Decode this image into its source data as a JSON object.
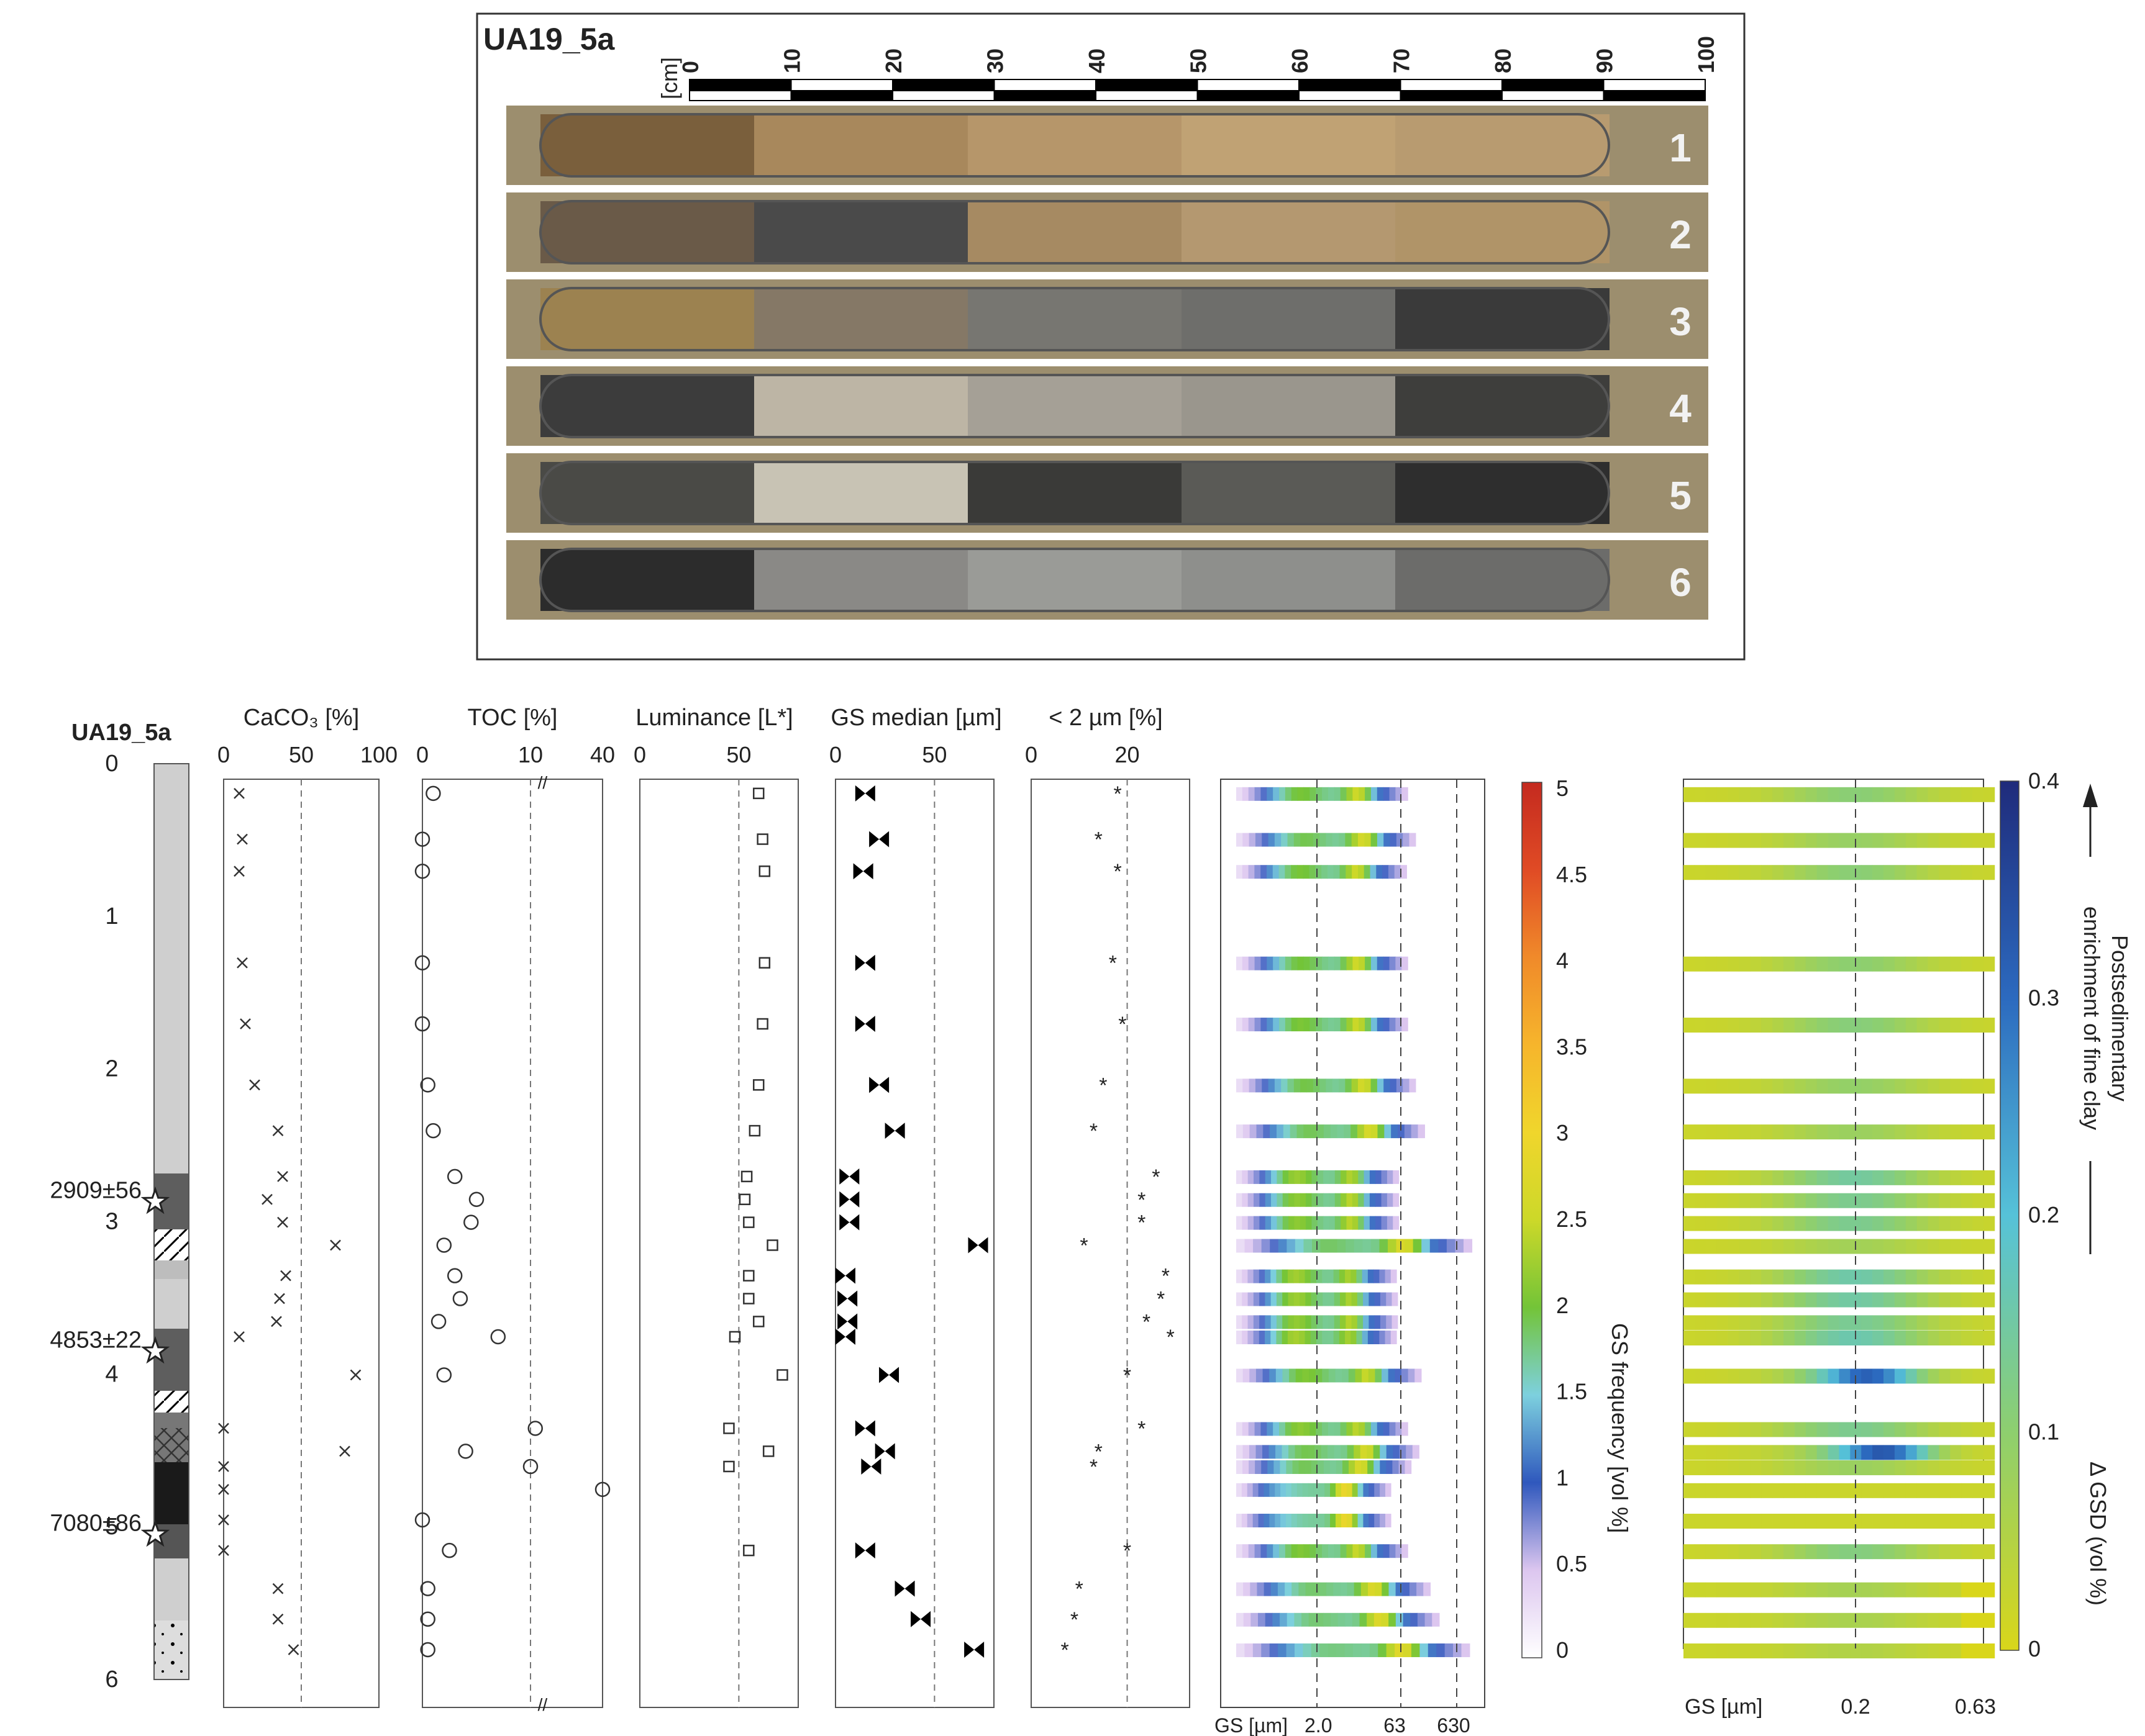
{
  "core_id": "UA19_5a",
  "photo": {
    "scale_unit": "[cm]",
    "scale_ticks": [
      "0",
      "10",
      "20",
      "30",
      "40",
      "50",
      "60",
      "70",
      "80",
      "90",
      "100"
    ],
    "sections": [
      {
        "label": "1",
        "colors": [
          "#7a5f3c",
          "#a8885c",
          "#b6966a",
          "#c0a274",
          "#b89b70"
        ]
      },
      {
        "label": "2",
        "colors": [
          "#6a5a48",
          "#4a4a4a",
          "#a68a62",
          "#b49870",
          "#b09468"
        ]
      },
      {
        "label": "3",
        "colors": [
          "#9c8250",
          "#857866",
          "#777671",
          "#6e6e6b",
          "#3a3a3a"
        ]
      },
      {
        "label": "4",
        "colors": [
          "#3c3c3c",
          "#bdb5a5",
          "#a5a096",
          "#9a968d",
          "#3e3e3c"
        ]
      },
      {
        "label": "5",
        "colors": [
          "#4a4a46",
          "#c8c3b4",
          "#3a3a38",
          "#5a5a56",
          "#2e2e2e"
        ]
      },
      {
        "label": "6",
        "colors": [
          "#2c2c2c",
          "#8a8986",
          "#9a9b97",
          "#8e8f8c",
          "#6c6c6a"
        ]
      }
    ]
  },
  "depth": {
    "title": "UA19_5a",
    "ticks": [
      "0",
      "1",
      "2",
      "3",
      "4",
      "5",
      "6"
    ],
    "ages": [
      "2909±56",
      "4853±22",
      "7080±86"
    ],
    "age_depths": [
      2.87,
      3.85,
      5.05
    ]
  },
  "panels": {
    "caco3": {
      "title": "CaCO₃ [%]",
      "ticks": [
        "0",
        "50",
        "100"
      ]
    },
    "toc": {
      "title": "TOC [%]",
      "ticks": [
        "0",
        "10",
        "40"
      ]
    },
    "luminance": {
      "title": "Luminance [L*]",
      "ticks": [
        "0",
        "50"
      ]
    },
    "gs_median": {
      "title": "GS median [µm]",
      "ticks": [
        "0",
        "50"
      ]
    },
    "clay": {
      "title": "< 2 µm [%]",
      "ticks": [
        "0",
        "20"
      ]
    }
  },
  "heatmap1": {
    "xaxis_label": "GS [µm]",
    "xticks": [
      "2.0",
      "63",
      "630"
    ],
    "colorbar_label": "GS frequency [vol %]",
    "colorbar_ticks": [
      "5",
      "4.5",
      "4",
      "3.5",
      "3",
      "2.5",
      "2",
      "1.5",
      "1",
      "0.5",
      "0"
    ]
  },
  "heatmap2": {
    "xaxis_label": "GS [µm]",
    "xticks": [
      "0.2",
      "0.63"
    ],
    "colorbar_label": "Δ GSD (vol %)",
    "colorbar_ticks": [
      "0.4",
      "0.3",
      "0.2",
      "0.1",
      "0"
    ],
    "arrow_label_line1": "Postsedimentary",
    "arrow_label_line2": "enrichment of fine clay"
  },
  "chart_data": {
    "type": "scatter",
    "y_axis": {
      "label": "Depth",
      "unit": "m",
      "range": [
        0,
        6
      ],
      "reversed": true
    },
    "sample_depths": [
      0.04,
      0.34,
      0.55,
      1.15,
      1.55,
      1.95,
      2.25,
      2.55,
      2.7,
      2.85,
      3.0,
      3.2,
      3.35,
      3.5,
      3.6,
      3.85,
      4.2,
      4.35,
      4.45,
      4.6,
      4.8,
      5.0,
      5.25,
      5.45,
      5.65
    ],
    "caco3": [
      10,
      12,
      10,
      12,
      14,
      20,
      35,
      38,
      28,
      38,
      72,
      40,
      36,
      34,
      10,
      85,
      0,
      78,
      0,
      0,
      0,
      0,
      35,
      35,
      45
    ],
    "toc": [
      1,
      0,
      0,
      0,
      0,
      0.5,
      1,
      3,
      5,
      4.5,
      2,
      3,
      3.5,
      1.5,
      7,
      2,
      12,
      4,
      10,
      40,
      0,
      2.5,
      0.5,
      0.5,
      0.5
    ],
    "luminance": [
      60,
      62,
      63,
      63,
      62,
      60,
      58,
      54,
      53,
      55,
      67,
      55,
      55,
      60,
      48,
      72,
      45,
      65,
      45,
      0,
      0,
      55,
      0,
      0,
      0
    ],
    "gs_median": [
      15,
      22,
      14,
      15,
      15,
      22,
      30,
      7,
      7,
      7,
      72,
      5,
      6,
      6,
      5,
      27,
      15,
      25,
      18,
      0,
      0,
      15,
      35,
      43,
      70
    ],
    "clay": [
      18,
      14,
      18,
      17,
      19,
      15,
      13,
      26,
      23,
      23,
      11,
      28,
      27,
      24,
      29,
      20,
      23,
      14,
      13,
      0,
      0,
      20,
      10,
      9,
      7
    ],
    "heatmap_gs_axis": [
      "2.0",
      "63",
      "630"
    ],
    "dgsd_axis": [
      "0.2",
      "0.63"
    ]
  }
}
